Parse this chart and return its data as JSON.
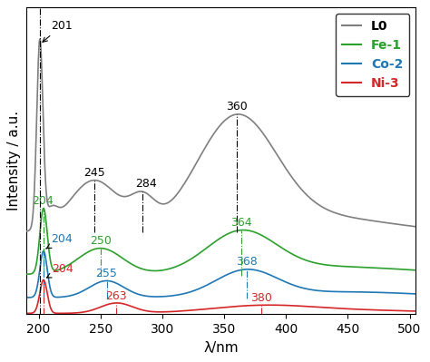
{
  "xlabel": "λ/nm",
  "ylabel": "Intensity / a.u.",
  "xlim": [
    190,
    505
  ],
  "xticks": [
    200,
    250,
    300,
    350,
    400,
    450,
    500
  ],
  "legend_labels": [
    "L0",
    "Fe-1",
    "Co-2",
    "Ni-3"
  ],
  "line_colors": [
    "#7f7f7f",
    "#2ca02c",
    "#1f77b4",
    "#d62728"
  ],
  "annot_line_style": "-.",
  "background_color": "#ffffff"
}
